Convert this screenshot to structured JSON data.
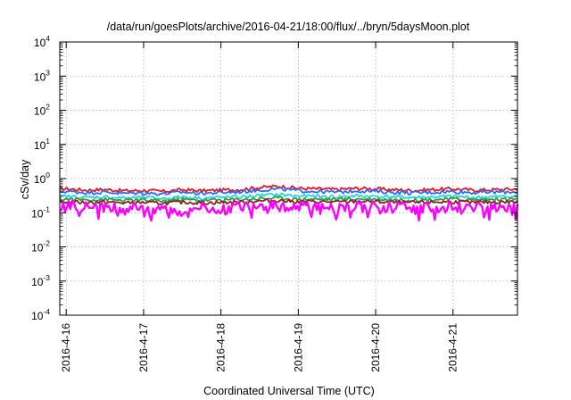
{
  "chart_data": {
    "type": "area",
    "title": "/data/run/goesPlots/archive/2016-04-21/18:00/flux/../bryn/5daysMoon.plot",
    "xlabel": "Coordinated Universal Time (UTC)",
    "ylabel": "cSv/day",
    "yscale": "log",
    "ylim": [
      0.0001,
      10000
    ],
    "xlim": [
      "2016-04-15T22:00",
      "2016-04-21T20:00"
    ],
    "grid": true,
    "x_tick_labels": [
      "2016-4-16",
      "2016-4-17",
      "2016-4-18",
      "2016-4-19",
      "2016-4-20",
      "2016-4-21"
    ],
    "x_tick_dates": [
      "2016-04-16",
      "2016-04-17",
      "2016-04-18",
      "2016-04-19",
      "2016-04-20",
      "2016-04-21"
    ],
    "y_ticks": [
      {
        "base": "10",
        "exp": "-4",
        "value": 0.0001
      },
      {
        "base": "10",
        "exp": "-3",
        "value": 0.001
      },
      {
        "base": "10",
        "exp": "-2",
        "value": 0.01
      },
      {
        "base": "10",
        "exp": "-1",
        "value": 0.1
      },
      {
        "base": "10",
        "exp": "0",
        "value": 1
      },
      {
        "base": "10",
        "exp": "1",
        "value": 10
      },
      {
        "base": "10",
        "exp": "2",
        "value": 100
      },
      {
        "base": "10",
        "exp": "3",
        "value": 1000
      },
      {
        "base": "10",
        "exp": "4",
        "value": 10000
      }
    ],
    "times": [
      "2016-04-16T00:00",
      "2016-04-16T06:00",
      "2016-04-16T12:00",
      "2016-04-16T18:00",
      "2016-04-17T00:00",
      "2016-04-17T06:00",
      "2016-04-17T12:00",
      "2016-04-17T18:00",
      "2016-04-18T00:00",
      "2016-04-18T06:00",
      "2016-04-18T12:00",
      "2016-04-18T18:00",
      "2016-04-19T00:00",
      "2016-04-19T06:00",
      "2016-04-19T12:00",
      "2016-04-19T18:00",
      "2016-04-20T00:00",
      "2016-04-20T06:00",
      "2016-04-20T12:00",
      "2016-04-20T18:00",
      "2016-04-21T00:00",
      "2016-04-21T06:00",
      "2016-04-21T12:00",
      "2016-04-21T18:00"
    ],
    "series": [
      {
        "color": "#e8141e",
        "values": [
          0.5,
          0.46,
          0.48,
          0.44,
          0.45,
          0.42,
          0.47,
          0.44,
          0.46,
          0.48,
          0.55,
          0.6,
          0.52,
          0.5,
          0.48,
          0.52,
          0.5,
          0.47,
          0.45,
          0.48,
          0.5,
          0.46,
          0.47,
          0.49
        ]
      },
      {
        "color": "#2a6bff",
        "values": [
          0.42,
          0.39,
          0.4,
          0.37,
          0.38,
          0.36,
          0.4,
          0.37,
          0.39,
          0.41,
          0.46,
          0.5,
          0.44,
          0.42,
          0.4,
          0.44,
          0.42,
          0.4,
          0.38,
          0.4,
          0.42,
          0.39,
          0.4,
          0.41
        ]
      },
      {
        "color": "#22d6e8",
        "values": [
          0.3,
          0.28,
          0.29,
          0.27,
          0.28,
          0.26,
          0.29,
          0.27,
          0.28,
          0.29,
          0.32,
          0.34,
          0.31,
          0.3,
          0.29,
          0.31,
          0.3,
          0.29,
          0.28,
          0.29,
          0.3,
          0.28,
          0.29,
          0.3
        ]
      },
      {
        "color": "#3a9a3a",
        "values": [
          0.25,
          0.24,
          0.245,
          0.23,
          0.235,
          0.22,
          0.245,
          0.23,
          0.24,
          0.245,
          0.26,
          0.27,
          0.25,
          0.25,
          0.245,
          0.255,
          0.25,
          0.24,
          0.235,
          0.245,
          0.25,
          0.24,
          0.245,
          0.25
        ]
      },
      {
        "color": "#8a2020",
        "values": [
          0.21,
          0.2,
          0.205,
          0.195,
          0.2,
          0.19,
          0.205,
          0.195,
          0.2,
          0.205,
          0.22,
          0.23,
          0.21,
          0.21,
          0.205,
          0.215,
          0.21,
          0.2,
          0.198,
          0.205,
          0.21,
          0.2,
          0.205,
          0.21
        ]
      },
      {
        "color": "#ff00ff",
        "values": [
          0.17,
          0.15,
          0.16,
          0.14,
          0.15,
          0.13,
          0.1,
          0.15,
          0.12,
          0.16,
          0.17,
          0.18,
          0.16,
          0.15,
          0.14,
          0.17,
          0.16,
          0.15,
          0.14,
          0.15,
          0.16,
          0.14,
          0.15,
          0.16
        ]
      }
    ]
  }
}
